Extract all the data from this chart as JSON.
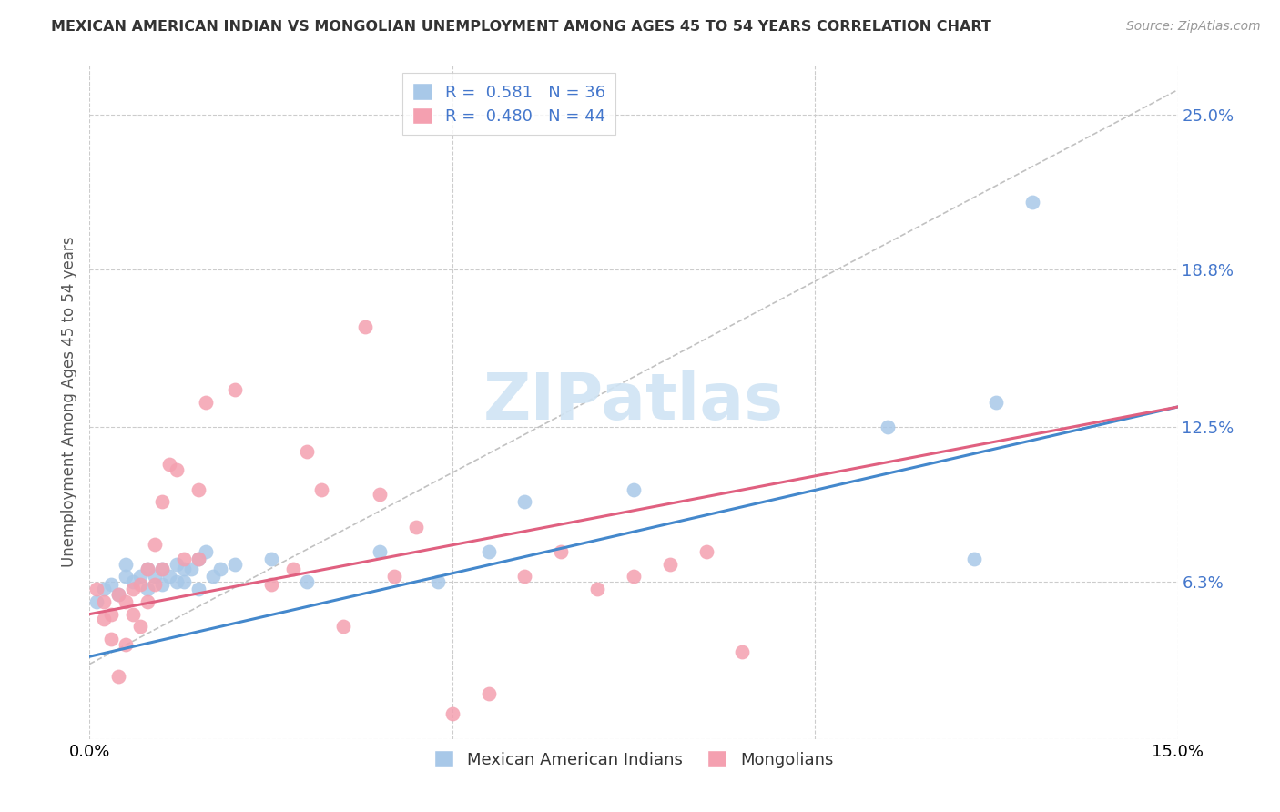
{
  "title": "MEXICAN AMERICAN INDIAN VS MONGOLIAN UNEMPLOYMENT AMONG AGES 45 TO 54 YEARS CORRELATION CHART",
  "source": "Source: ZipAtlas.com",
  "ylabel": "Unemployment Among Ages 45 to 54 years",
  "xlim": [
    0.0,
    0.15
  ],
  "ylim": [
    0.0,
    0.27
  ],
  "yticks": [
    0.0,
    0.063,
    0.125,
    0.188,
    0.25
  ],
  "ytick_labels": [
    "",
    "6.3%",
    "12.5%",
    "18.8%",
    "25.0%"
  ],
  "xticks": [
    0.0,
    0.05,
    0.1,
    0.15
  ],
  "xtick_labels": [
    "0.0%",
    "",
    "",
    "15.0%"
  ],
  "legend_blue_r": "0.581",
  "legend_blue_n": "36",
  "legend_pink_r": "0.480",
  "legend_pink_n": "44",
  "blue_color": "#a8c8e8",
  "pink_color": "#f4a0b0",
  "blue_line_color": "#4488cc",
  "pink_line_color": "#e06080",
  "dash_color": "#bbbbbb",
  "watermark_color": "#d0e4f4",
  "blue_scatter_x": [
    0.001,
    0.002,
    0.003,
    0.004,
    0.005,
    0.005,
    0.006,
    0.007,
    0.008,
    0.008,
    0.009,
    0.01,
    0.01,
    0.011,
    0.012,
    0.012,
    0.013,
    0.013,
    0.014,
    0.015,
    0.015,
    0.016,
    0.017,
    0.018,
    0.02,
    0.025,
    0.03,
    0.04,
    0.048,
    0.055,
    0.06,
    0.075,
    0.11,
    0.122,
    0.125,
    0.13
  ],
  "blue_scatter_y": [
    0.055,
    0.06,
    0.062,
    0.058,
    0.065,
    0.07,
    0.063,
    0.065,
    0.06,
    0.068,
    0.065,
    0.062,
    0.068,
    0.065,
    0.063,
    0.07,
    0.063,
    0.068,
    0.068,
    0.06,
    0.072,
    0.075,
    0.065,
    0.068,
    0.07,
    0.072,
    0.063,
    0.075,
    0.063,
    0.075,
    0.095,
    0.1,
    0.125,
    0.072,
    0.135,
    0.215
  ],
  "pink_scatter_x": [
    0.001,
    0.002,
    0.002,
    0.003,
    0.003,
    0.004,
    0.004,
    0.005,
    0.005,
    0.006,
    0.006,
    0.007,
    0.007,
    0.008,
    0.008,
    0.009,
    0.009,
    0.01,
    0.01,
    0.011,
    0.012,
    0.013,
    0.015,
    0.015,
    0.016,
    0.02,
    0.025,
    0.028,
    0.03,
    0.032,
    0.035,
    0.038,
    0.04,
    0.042,
    0.045,
    0.05,
    0.055,
    0.06,
    0.065,
    0.07,
    0.075,
    0.08,
    0.085,
    0.09
  ],
  "pink_scatter_y": [
    0.06,
    0.055,
    0.048,
    0.05,
    0.04,
    0.058,
    0.025,
    0.055,
    0.038,
    0.06,
    0.05,
    0.062,
    0.045,
    0.055,
    0.068,
    0.062,
    0.078,
    0.068,
    0.095,
    0.11,
    0.108,
    0.072,
    0.1,
    0.072,
    0.135,
    0.14,
    0.062,
    0.068,
    0.115,
    0.1,
    0.045,
    0.165,
    0.098,
    0.065,
    0.085,
    0.01,
    0.018,
    0.065,
    0.075,
    0.06,
    0.065,
    0.07,
    0.075,
    0.035
  ],
  "blue_line_x": [
    0.0,
    0.15
  ],
  "blue_line_y": [
    0.033,
    0.133
  ],
  "pink_line_x": [
    0.0,
    0.15
  ],
  "pink_line_y": [
    0.05,
    0.133
  ],
  "dash_line_x": [
    0.0,
    0.15
  ],
  "dash_line_y": [
    0.03,
    0.26
  ]
}
